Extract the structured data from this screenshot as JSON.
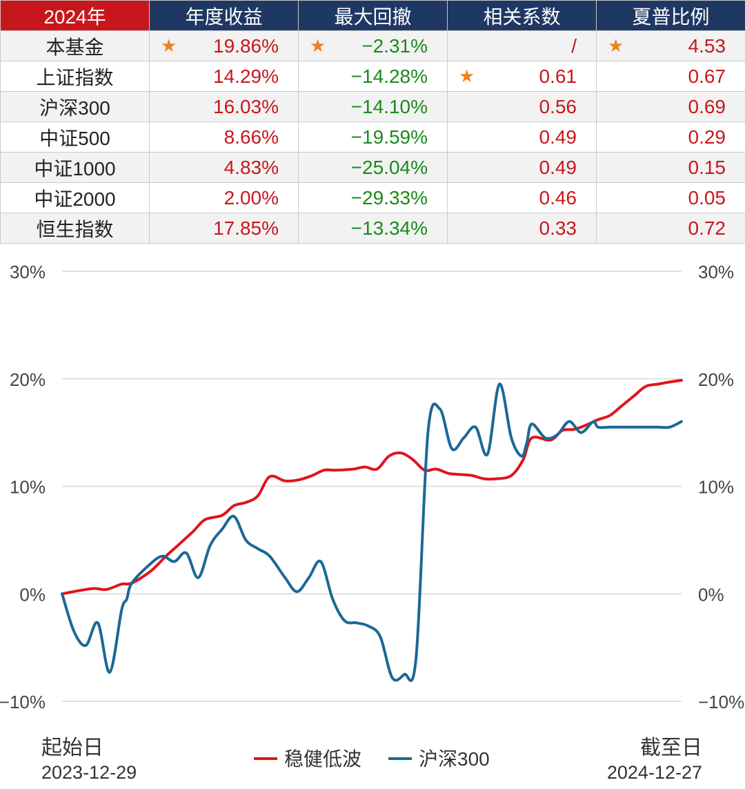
{
  "table": {
    "corner": "2024年",
    "headers": [
      "年度收益",
      "最大回撤",
      "相关系数",
      "夏普比例"
    ],
    "rows": [
      {
        "name": "本基金",
        "cells": [
          {
            "v": "19.86%",
            "star": true
          },
          {
            "v": "−2.31%",
            "star": true
          },
          {
            "v": "/",
            "star": false
          },
          {
            "v": "4.53",
            "star": true
          }
        ]
      },
      {
        "name": "上证指数",
        "cells": [
          {
            "v": "14.29%",
            "star": false
          },
          {
            "v": "−14.28%",
            "star": false
          },
          {
            "v": "0.61",
            "star": true
          },
          {
            "v": "0.67",
            "star": false
          }
        ]
      },
      {
        "name": "沪深300",
        "cells": [
          {
            "v": "16.03%",
            "star": false
          },
          {
            "v": "−14.10%",
            "star": false
          },
          {
            "v": "0.56",
            "star": false
          },
          {
            "v": "0.69",
            "star": false
          }
        ]
      },
      {
        "name": "中证500",
        "cells": [
          {
            "v": "8.66%",
            "star": false
          },
          {
            "v": "−19.59%",
            "star": false
          },
          {
            "v": "0.49",
            "star": false
          },
          {
            "v": "0.29",
            "star": false
          }
        ]
      },
      {
        "name": "中证1000",
        "cells": [
          {
            "v": "4.83%",
            "star": false
          },
          {
            "v": "−25.04%",
            "star": false
          },
          {
            "v": "0.49",
            "star": false
          },
          {
            "v": "0.15",
            "star": false
          }
        ]
      },
      {
        "name": "中证2000",
        "cells": [
          {
            "v": "2.00%",
            "star": false
          },
          {
            "v": "−29.33%",
            "star": false
          },
          {
            "v": "0.46",
            "star": false
          },
          {
            "v": "0.05",
            "star": false
          }
        ]
      },
      {
        "name": "恒生指数",
        "cells": [
          {
            "v": "17.85%",
            "star": false
          },
          {
            "v": "−13.34%",
            "star": false
          },
          {
            "v": "0.33",
            "star": false
          },
          {
            "v": "0.72",
            "star": false
          }
        ]
      }
    ],
    "star_glyph": "★",
    "colors": {
      "corner_bg": "#c8161d",
      "header_bg": "#1f3763",
      "positive": "#c8161d",
      "negative": "#1a8a1a",
      "star": "#f07f1e"
    }
  },
  "footer": {
    "start_label": "起始日",
    "start_date": "2023-12-29",
    "end_label": "截至日",
    "end_date": "2024-12-27"
  },
  "chart_data": {
    "type": "line",
    "title": "",
    "xlabel": "",
    "ylabel": "",
    "ylim": [
      -10,
      30
    ],
    "y_ticks": [
      "−10%",
      "0%",
      "10%",
      "20%",
      "30%"
    ],
    "y_tick_values": [
      -10,
      0,
      10,
      20,
      30
    ],
    "grid": true,
    "legend_position": "bottom-center",
    "x_start": "2023-12-29",
    "x_end": "2024-12-27",
    "series": [
      {
        "name": "稳健低波",
        "color": "#e0141b",
        "x": [
          "2023-12-29",
          "2024-01-08",
          "2024-01-17",
          "2024-01-24",
          "2024-02-02",
          "2024-02-08",
          "2024-02-19",
          "2024-02-28",
          "2024-03-06",
          "2024-03-15",
          "2024-03-22",
          "2024-04-01",
          "2024-04-08",
          "2024-04-15",
          "2024-04-22",
          "2024-04-29",
          "2024-05-08",
          "2024-05-16",
          "2024-05-24",
          "2024-05-31",
          "2024-06-07",
          "2024-06-17",
          "2024-06-24",
          "2024-07-01",
          "2024-07-08",
          "2024-07-15",
          "2024-07-22",
          "2024-07-29",
          "2024-08-05",
          "2024-08-12",
          "2024-08-19",
          "2024-08-26",
          "2024-09-02",
          "2024-09-09",
          "2024-09-18",
          "2024-09-25",
          "2024-09-30",
          "2024-10-11",
          "2024-10-18",
          "2024-10-25",
          "2024-11-01",
          "2024-11-08",
          "2024-11-15",
          "2024-11-22",
          "2024-11-29",
          "2024-12-06",
          "2024-12-13",
          "2024-12-20",
          "2024-12-27"
        ],
        "values": [
          0.0,
          0.3,
          0.5,
          0.4,
          0.9,
          1.0,
          2.1,
          3.5,
          4.5,
          5.8,
          6.9,
          7.3,
          8.2,
          8.5,
          9.1,
          10.9,
          10.5,
          10.6,
          11.0,
          11.5,
          11.5,
          11.6,
          11.8,
          11.6,
          12.8,
          13.1,
          12.5,
          11.5,
          11.6,
          11.2,
          11.1,
          11.0,
          10.7,
          10.7,
          11.0,
          12.5,
          14.5,
          14.3,
          15.2,
          15.3,
          15.7,
          16.2,
          16.6,
          17.5,
          18.4,
          19.3,
          19.5,
          19.7,
          19.86
        ]
      },
      {
        "name": "沪深300",
        "color": "#1b6896",
        "x": [
          "2023-12-29",
          "2024-01-05",
          "2024-01-12",
          "2024-01-19",
          "2024-01-26",
          "2024-02-02",
          "2024-02-05",
          "2024-02-08",
          "2024-02-19",
          "2024-02-26",
          "2024-03-04",
          "2024-03-11",
          "2024-03-18",
          "2024-03-25",
          "2024-04-01",
          "2024-04-08",
          "2024-04-15",
          "2024-04-22",
          "2024-04-29",
          "2024-05-08",
          "2024-05-15",
          "2024-05-22",
          "2024-05-29",
          "2024-06-05",
          "2024-06-12",
          "2024-06-19",
          "2024-06-26",
          "2024-07-03",
          "2024-07-10",
          "2024-07-17",
          "2024-07-24",
          "2024-07-31",
          "2024-08-07",
          "2024-08-14",
          "2024-08-21",
          "2024-08-28",
          "2024-09-04",
          "2024-09-11",
          "2024-09-18",
          "2024-09-24",
          "2024-09-27",
          "2024-09-30",
          "2024-10-08",
          "2024-10-15",
          "2024-10-22",
          "2024-10-29",
          "2024-11-05",
          "2024-11-08",
          "2024-11-15",
          "2024-11-22",
          "2024-11-29",
          "2024-12-06",
          "2024-12-13",
          "2024-12-20",
          "2024-12-27"
        ],
        "values": [
          0.0,
          -3.5,
          -4.8,
          -2.7,
          -7.3,
          -1.5,
          -0.5,
          1.0,
          2.8,
          3.5,
          3.0,
          3.8,
          1.5,
          4.5,
          6.0,
          7.2,
          5.0,
          4.2,
          3.5,
          1.5,
          0.2,
          1.5,
          3.0,
          -0.5,
          -2.5,
          -2.7,
          -3.0,
          -4.0,
          -7.8,
          -7.5,
          -6.0,
          15.0,
          17.2,
          13.5,
          14.5,
          15.5,
          13.0,
          19.5,
          14.5,
          12.8,
          14.0,
          15.8,
          14.5,
          14.8,
          16.03,
          15.0,
          16.0,
          15.5,
          15.5,
          15.5,
          15.5,
          15.5,
          15.5,
          15.5,
          16.03
        ]
      }
    ]
  }
}
